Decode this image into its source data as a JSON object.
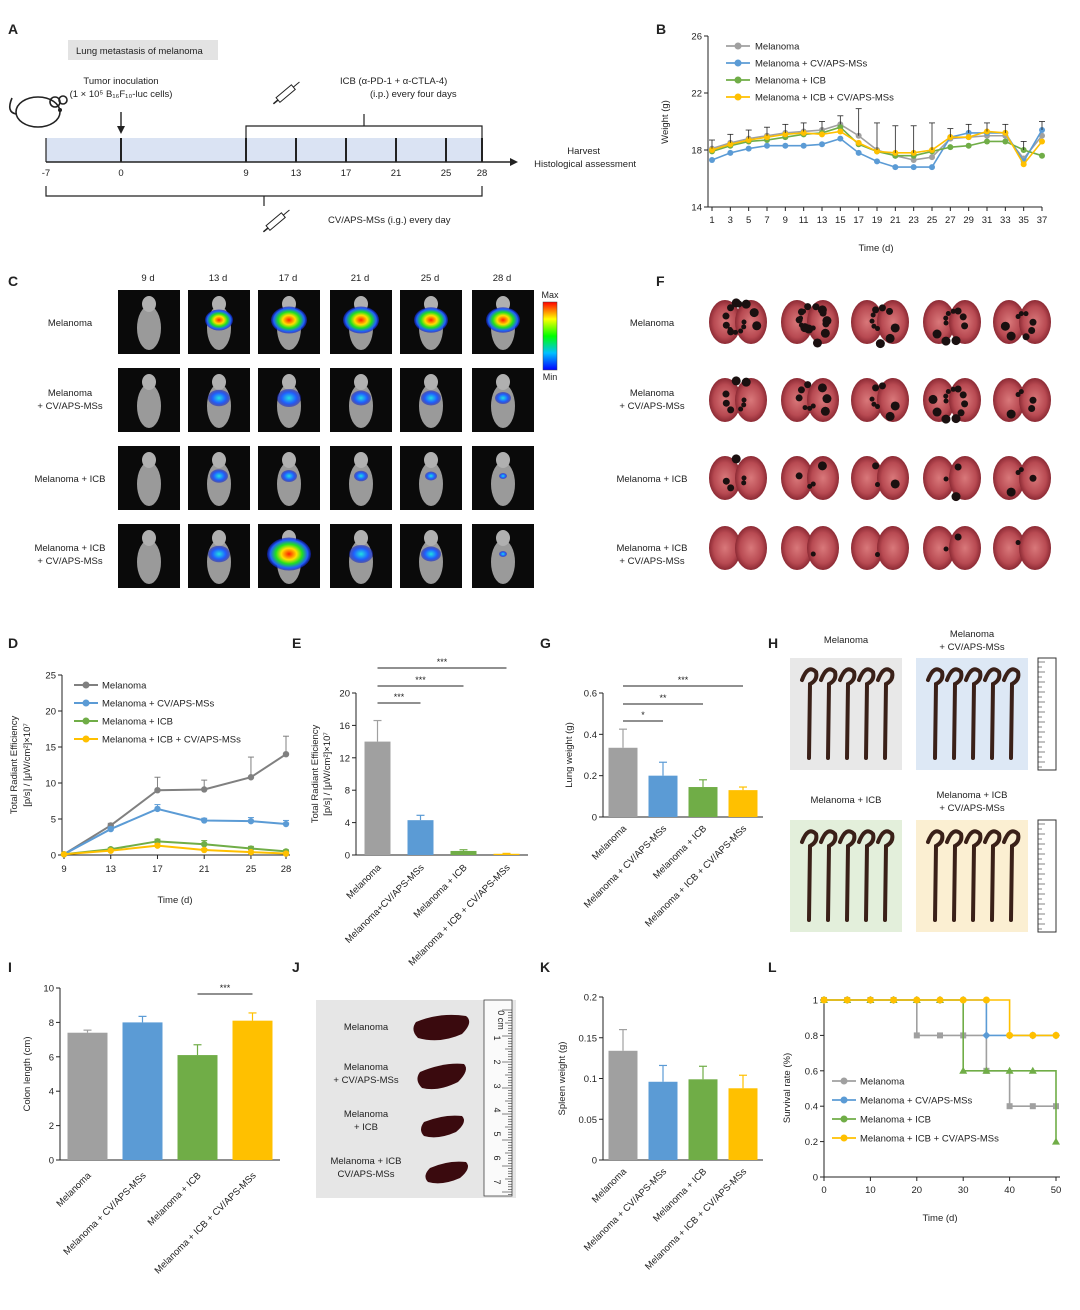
{
  "colors": {
    "melanoma": "#a0a0a0",
    "melanoma_cv": "#5b9bd5",
    "melanoma_icb": "#70ad47",
    "melanoma_icb_cv": "#ffc000",
    "grey_line": "#808080",
    "timeline_fill": "#dae3f3"
  },
  "groups": {
    "g1": "Melanoma",
    "g2a": "Melanoma",
    "g2b": "+ CV/APS-MSs",
    "g3": "Melanoma + ICB",
    "g4a": "Melanoma + ICB",
    "g4b": "+ CV/APS-MSs"
  },
  "panelA": {
    "letter": "A",
    "header": "Lung metastasis of melanoma",
    "tumor_line1": "Tumor inoculation",
    "tumor_line2": "(1 × 10⁵ B₁₆F₁₀-luc cells)",
    "icb_line1": "ICB (α-PD-1 + α-CTLA-4)",
    "icb_line2": "(i.p.) every four days",
    "harvest1": "Harvest",
    "harvest2": "Histological assessment",
    "cv_note": "CV/APS-MSs (i.g.) every day",
    "days": [
      "-7",
      "0",
      "9",
      "13",
      "17",
      "21",
      "25",
      "28"
    ]
  },
  "panelC": {
    "letter": "C",
    "days": [
      "9 d",
      "13 d",
      "17 d",
      "21 d",
      "25 d",
      "28 d"
    ],
    "scale_max": "Max",
    "scale_min": "Min"
  },
  "panelF": {
    "letter": "F"
  },
  "panelH": {
    "letter": "H",
    "g1": "Melanoma",
    "g2a": "Melanoma",
    "g2b": "+ CV/APS-MSs",
    "g3": "Melanoma + ICB",
    "g4a": "Melanoma + ICB",
    "g4b": "+ CV/APS-MSs"
  },
  "panelJ": {
    "letter": "J",
    "g1": "Melanoma",
    "g2a": "Melanoma",
    "g2b": "+ CV/APS-MSs",
    "g3a": "Melanoma",
    "g3b": "+ ICB",
    "g4a": "Melanoma + ICB",
    "g4b": "CV/APS-MSs",
    "ruler_unit": "0 cm",
    "ruler_ticks": [
      "1",
      "2",
      "3",
      "4",
      "5",
      "6",
      "7"
    ]
  },
  "chart_data": [
    {
      "panel": "B",
      "type": "line",
      "xlabel": "Time (d)",
      "ylabel": "Weight (g)",
      "ylim": [
        14,
        26
      ],
      "yticks": [
        "14",
        "18",
        "22",
        "26"
      ],
      "x": [
        1,
        3,
        5,
        7,
        9,
        11,
        13,
        15,
        17,
        19,
        21,
        23,
        25,
        27,
        29,
        31,
        33,
        35,
        37
      ],
      "series": [
        {
          "name": "Melanoma",
          "values": [
            18.1,
            18.5,
            18.8,
            19.0,
            19.2,
            19.3,
            19.4,
            19.8,
            19.0,
            18.0,
            17.6,
            17.3,
            17.5,
            18.8,
            18.9,
            19.0,
            19.0,
            17.4,
            19.0
          ]
        },
        {
          "name": "Melanoma + CV/APS-MSs",
          "values": [
            17.3,
            17.8,
            18.1,
            18.3,
            18.3,
            18.3,
            18.4,
            18.8,
            17.8,
            17.2,
            16.8,
            16.8,
            16.8,
            18.9,
            19.2,
            19.2,
            19.2,
            17.2,
            19.4
          ]
        },
        {
          "name": "Melanoma + ICB",
          "values": [
            17.9,
            18.3,
            18.6,
            18.7,
            18.9,
            19.1,
            19.2,
            19.6,
            18.4,
            17.9,
            17.6,
            17.6,
            17.9,
            18.2,
            18.3,
            18.6,
            18.6,
            18.0,
            17.6
          ]
        },
        {
          "name": "Melanoma + ICB + CV/APS-MSs",
          "values": [
            18.0,
            18.4,
            18.7,
            18.9,
            19.1,
            19.2,
            19.1,
            19.3,
            18.5,
            17.9,
            17.8,
            17.8,
            18.0,
            18.9,
            18.9,
            19.3,
            19.2,
            17.0,
            18.6
          ]
        }
      ],
      "legend": "top-left"
    },
    {
      "panel": "D",
      "type": "line",
      "xlabel": "Time (d)",
      "ylabel_line1": "Total Radiant Efficiency",
      "ylabel_line2": "[p/s] / [μW/cm²]×10⁷",
      "ylim": [
        0,
        25
      ],
      "yticks": [
        "0",
        "5",
        "10",
        "15",
        "20",
        "25"
      ],
      "x": [
        9,
        13,
        17,
        21,
        25,
        28
      ],
      "series": [
        {
          "name": "Melanoma",
          "values": [
            0.1,
            4.1,
            9.0,
            9.1,
            10.8,
            14.0
          ],
          "errors": [
            0,
            0.3,
            1.8,
            1.3,
            2.8,
            2.5
          ]
        },
        {
          "name": "Melanoma  + CV/APS-MSs",
          "values": [
            0.1,
            3.6,
            6.4,
            4.8,
            4.7,
            4.3
          ],
          "errors": [
            0,
            0.3,
            0.6,
            0.3,
            0.5,
            0.5
          ]
        },
        {
          "name": "Melanoma + ICB",
          "values": [
            0.1,
            0.8,
            1.9,
            1.5,
            0.9,
            0.5
          ],
          "errors": [
            0,
            0.2,
            0.3,
            0.5,
            0.3,
            0.2
          ]
        },
        {
          "name": "Melanoma + ICB + CV/APS-MSs",
          "values": [
            0.1,
            0.6,
            1.3,
            0.7,
            0.4,
            0.2
          ],
          "errors": [
            0,
            0.1,
            0.3,
            0.2,
            0.1,
            0.1
          ]
        }
      ],
      "legend": "top-left"
    },
    {
      "panel": "E",
      "type": "bar",
      "ylabel_line1": "Total Radiant Efficiency",
      "ylabel_line2": "[p/s] / [μW/cm²]×10⁷",
      "ylim": [
        0,
        20
      ],
      "yticks": [
        "0",
        "4",
        "8",
        "12",
        "16",
        "20"
      ],
      "categories": [
        "Melanoma",
        "Melanoma+CV/APS-MSs",
        "Melanoma + ICB",
        "Melanoma + ICB + CV/APS-MSs"
      ],
      "values": [
        14.0,
        4.3,
        0.5,
        0.15
      ],
      "errors": [
        2.6,
        0.6,
        0.15,
        0.05
      ],
      "significance": [
        "***",
        "***",
        "***"
      ]
    },
    {
      "panel": "G",
      "type": "bar",
      "ylabel": "Lung weight (g)",
      "ylim": [
        0,
        0.6
      ],
      "yticks": [
        "0",
        "0.2",
        "0.4",
        "0.6"
      ],
      "categories": [
        "Melanoma",
        "Melanoma + CV/APS-MSs",
        "Melanoma + ICB",
        "Melanoma + ICB + CV/APS-MSs"
      ],
      "values": [
        0.335,
        0.2,
        0.145,
        0.13
      ],
      "errors": [
        0.09,
        0.065,
        0.035,
        0.015
      ],
      "significance": [
        "*",
        "**",
        "***"
      ]
    },
    {
      "panel": "I",
      "type": "bar",
      "ylabel": "Colon length (cm)",
      "ylim": [
        0,
        10
      ],
      "yticks": [
        "0",
        "2",
        "4",
        "6",
        "8",
        "10"
      ],
      "categories": [
        "Melanoma",
        "Melanoma + CV/APS-MSs",
        "Melanoma + ICB",
        "Melanoma + ICB + CV/APS-MSs"
      ],
      "values": [
        7.4,
        8.0,
        6.1,
        8.1
      ],
      "errors": [
        0.15,
        0.35,
        0.6,
        0.45
      ],
      "significance": [
        "***"
      ]
    },
    {
      "panel": "K",
      "type": "bar",
      "ylabel": "Spleen weight (g)",
      "ylim": [
        0,
        0.2
      ],
      "yticks": [
        "0",
        "0.05",
        "0.1",
        "0.15",
        "0.2"
      ],
      "categories": [
        "Melanoma",
        "Melanoma + CV/APS-MSs",
        "Melanoma + ICB",
        "Melanoma + ICB + CV/APS-MSs"
      ],
      "values": [
        0.134,
        0.096,
        0.099,
        0.088
      ],
      "errors": [
        0.026,
        0.02,
        0.016,
        0.016
      ]
    },
    {
      "panel": "L",
      "type": "line",
      "xlabel": "Time (d)",
      "ylabel": "Survival rate (%)",
      "ylim": [
        0,
        1
      ],
      "yticks": [
        "0",
        "0.2",
        "0.4",
        "0.6",
        "0.8",
        "1"
      ],
      "xticks": [
        "0",
        "10",
        "20",
        "30",
        "40",
        "50"
      ],
      "series": [
        {
          "name": "Melanoma",
          "x": [
            0,
            5,
            10,
            15,
            20,
            25,
            30,
            35,
            40,
            45,
            50
          ],
          "values": [
            1,
            1,
            1,
            1,
            0.8,
            0.8,
            0.8,
            0.6,
            0.4,
            0.4,
            0.4
          ]
        },
        {
          "name": "Melanoma + CV/APS-MSs",
          "x": [
            0,
            5,
            10,
            15,
            20,
            25,
            30,
            35,
            40,
            45,
            50
          ],
          "values": [
            1,
            1,
            1,
            1,
            1,
            1,
            1,
            0.8,
            0.8,
            0.8,
            0.8
          ]
        },
        {
          "name": "Melanoma + ICB",
          "x": [
            0,
            5,
            10,
            15,
            20,
            25,
            30,
            35,
            40,
            45,
            50
          ],
          "values": [
            1,
            1,
            1,
            1,
            1,
            1,
            0.6,
            0.6,
            0.6,
            0.6,
            0.2
          ]
        },
        {
          "name": "Melanoma + ICB + CV/APS-MSs",
          "x": [
            0,
            5,
            10,
            15,
            20,
            25,
            30,
            35,
            40,
            45,
            50
          ],
          "values": [
            1,
            1,
            1,
            1,
            1,
            1,
            1,
            1,
            0.8,
            0.8,
            0.8
          ]
        }
      ],
      "legend": "bottom-left"
    }
  ]
}
